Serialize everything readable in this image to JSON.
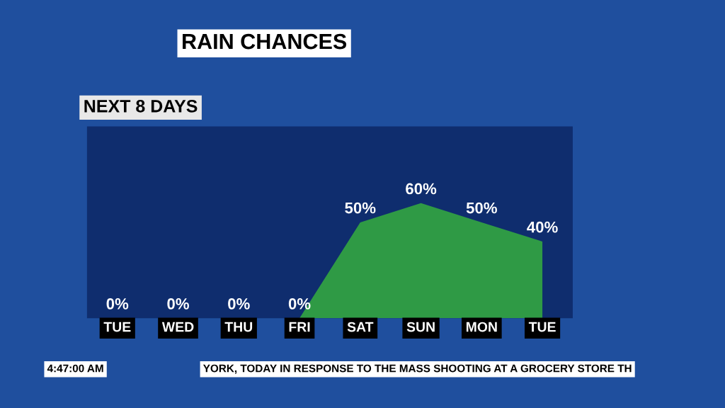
{
  "chart_data": {
    "type": "area",
    "title": "RAIN CHANCES",
    "subtitle": "NEXT 8 DAYS",
    "categories": [
      "TUE",
      "WED",
      "THU",
      "FRI",
      "SAT",
      "SUN",
      "MON",
      "TUE"
    ],
    "values": [
      0,
      0,
      0,
      0,
      50,
      60,
      50,
      40
    ],
    "value_labels": [
      "0%",
      "0%",
      "0%",
      "0%",
      "50%",
      "60%",
      "50%",
      "40%"
    ],
    "color": "#2f9a45",
    "ylim": [
      0,
      100
    ],
    "tick_labels": "x",
    "grid": false,
    "annotations": [
      "4:47:00 AM",
      "YORK, TODAY IN RESPONSE TO THE MASS SHOOTING AT A GROCERY STORE TH"
    ]
  }
}
